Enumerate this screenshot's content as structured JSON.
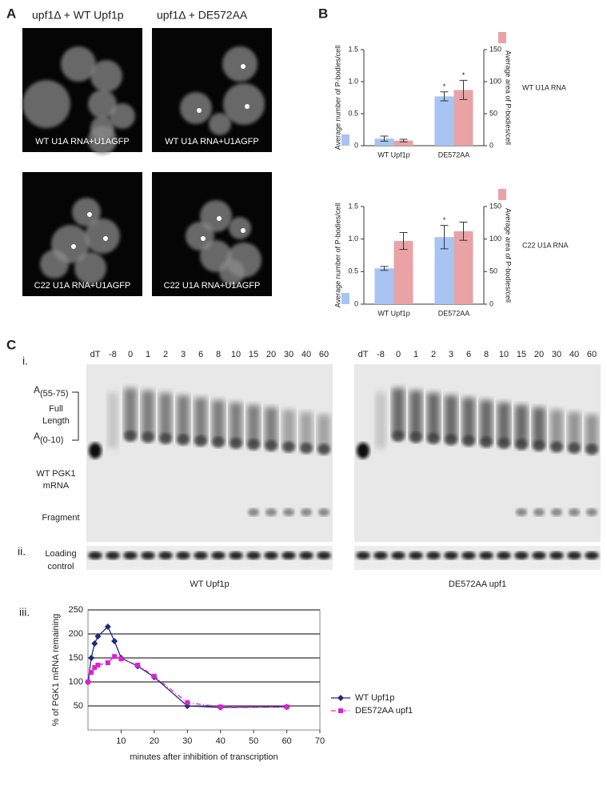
{
  "panel_a": {
    "label": "A",
    "columns": [
      "upf1Δ + WT Upf1p",
      "upf1Δ + DE572AA"
    ],
    "captions": [
      "WT U1A RNA+U1AGFP",
      "WT U1A RNA+U1AGFP",
      "C22 U1A RNA+U1AGFP",
      "C22 U1A RNA+U1AGFP"
    ]
  },
  "panel_b": {
    "label": "B"
  },
  "panel_c": {
    "label": "C",
    "sub_labels": [
      "i.",
      "ii.",
      "iii."
    ],
    "lanes": [
      "dT",
      "-8",
      "0",
      "1",
      "2",
      "3",
      "6",
      "8",
      "10",
      "15",
      "20",
      "30",
      "40",
      "60"
    ],
    "bracket_top": {
      "base": "A",
      "sub": "(55-75)"
    },
    "bracket_bottom": {
      "base": "A",
      "sub": "(0-10)"
    },
    "full_length": [
      "Full",
      "Length"
    ],
    "mrna": [
      "WT PGK1",
      "mRNA"
    ],
    "fragment": "Fragment",
    "loading": [
      "Loading",
      "control"
    ],
    "gel_titles": [
      "WT Upf1p",
      "DE572AA upf1"
    ]
  },
  "chart_data": [
    {
      "type": "bar",
      "categories": [
        "WT Upf1p",
        "DE572AA"
      ],
      "side_label": "WT U1A RNA",
      "ylabel": "Average number of P-bodies/cell",
      "y2label": "Average area of P-bodies/cell",
      "ylim": [
        0,
        1.5
      ],
      "yticks": [
        0,
        0.5,
        {
          "value": 1,
          "label": "1.0"
        },
        1.5
      ],
      "y2lim": [
        0,
        150
      ],
      "y2ticks": [
        0,
        50,
        100,
        150
      ],
      "series": [
        {
          "color": "#a7c4f2",
          "values": [
            0.11,
            0.77
          ],
          "errors": [
            0.04,
            0.07
          ],
          "annotations": [
            null,
            "*"
          ]
        },
        {
          "color": "#e9a3a5",
          "axis": "y2",
          "values": [
            8,
            87
          ],
          "errors": [
            2,
            15
          ],
          "annotations": [
            null,
            "*"
          ]
        }
      ]
    },
    {
      "type": "bar",
      "categories": [
        "WT Upf1p",
        "DE572AA"
      ],
      "side_label": "C22 U1A RNA",
      "ylabel": "Average number of P-bodies/cell",
      "y2label": "Average area of P-bodies/cell",
      "ylim": [
        0,
        1.5
      ],
      "yticks": [
        0,
        0.5,
        {
          "value": 1,
          "label": "1.0"
        },
        1.5
      ],
      "y2lim": [
        0,
        150
      ],
      "y2ticks": [
        0,
        50,
        100,
        150
      ],
      "series": [
        {
          "color": "#a7c4f2",
          "values": [
            0.55,
            1.03
          ],
          "errors": [
            0.03,
            0.18
          ],
          "annotations": [
            null,
            "*"
          ]
        },
        {
          "color": "#e9a3a5",
          "axis": "y2",
          "values": [
            97,
            112
          ],
          "errors": [
            13,
            14
          ],
          "annotations": [
            null,
            null
          ]
        }
      ]
    },
    {
      "type": "line",
      "xlabel": "minutes after inhibition of transcription",
      "ylabel": "% of PGK1 mRNA remaining",
      "xlim": [
        0,
        70
      ],
      "xticks": [
        10,
        20,
        30,
        40,
        50,
        60,
        70
      ],
      "ylim": [
        0,
        250
      ],
      "yticks": [
        50,
        100,
        150,
        200,
        250
      ],
      "grid": true,
      "x": [
        0,
        1,
        2,
        3,
        6,
        8,
        10,
        15,
        20,
        30,
        40,
        60
      ],
      "series": [
        {
          "name": "WT Upf1p",
          "color": "#1f2a7a",
          "marker": "diamond",
          "linestyle": "solid",
          "values": [
            100,
            150,
            180,
            195,
            215,
            185,
            150,
            133,
            110,
            50,
            47,
            48
          ]
        },
        {
          "name": "DE572AA upf1",
          "color": "#e020d8",
          "marker": "square",
          "linestyle": "dashdot",
          "values": [
            100,
            120,
            130,
            135,
            140,
            153,
            148,
            135,
            112,
            57,
            48,
            48
          ]
        }
      ]
    }
  ]
}
